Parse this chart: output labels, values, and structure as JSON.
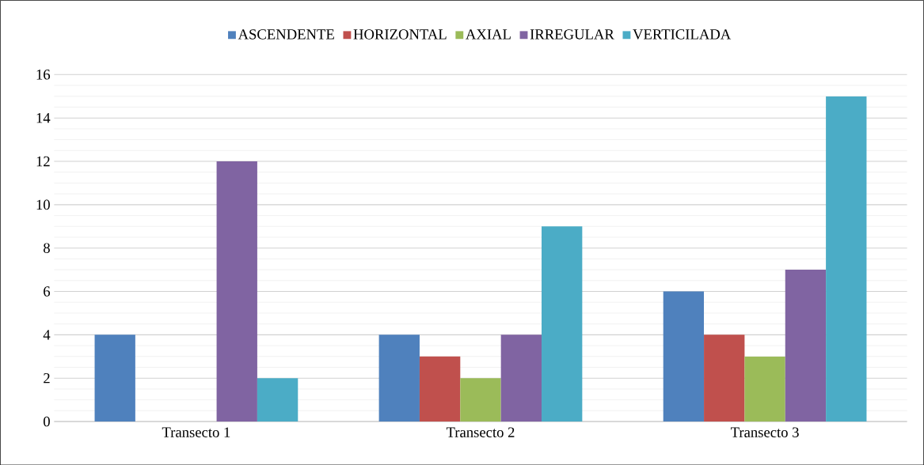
{
  "chart_data": {
    "type": "bar",
    "categories": [
      "Transecto 1",
      "Transecto 2",
      "Transecto 3"
    ],
    "series": [
      {
        "name": "ASCENDENTE",
        "color": "#4f81bd",
        "values": [
          4,
          4,
          6
        ]
      },
      {
        "name": "HORIZONTAL",
        "color": "#c0504d",
        "values": [
          0,
          3,
          4
        ]
      },
      {
        "name": "AXIAL",
        "color": "#9bbb59",
        "values": [
          0,
          2,
          3
        ]
      },
      {
        "name": "IRREGULAR",
        "color": "#8064a2",
        "values": [
          12,
          4,
          7
        ]
      },
      {
        "name": "VERTICILADA",
        "color": "#4bacc6",
        "values": [
          2,
          9,
          15
        ]
      }
    ],
    "ylim": [
      0,
      16
    ],
    "yticks": [
      0,
      2,
      4,
      6,
      8,
      10,
      12,
      14,
      16
    ],
    "grid": "y",
    "legend": "top"
  }
}
